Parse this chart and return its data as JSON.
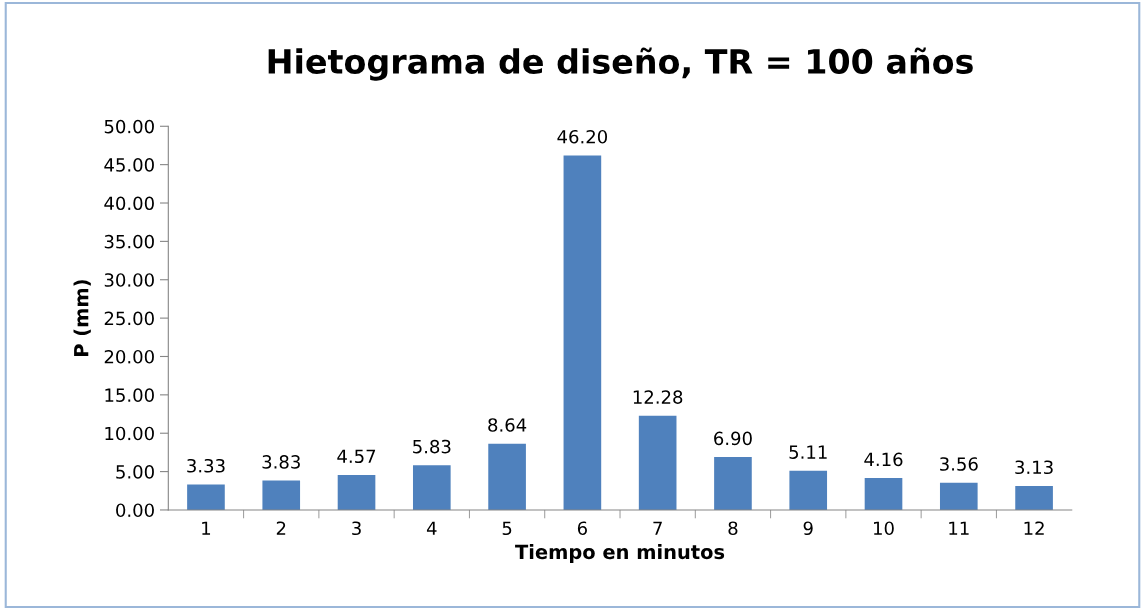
{
  "chart_data": {
    "type": "bar",
    "title": "Hietograma de diseño, TR = 100 años",
    "xlabel": "Tiempo en minutos",
    "ylabel": "P (mm)",
    "categories": [
      "1",
      "2",
      "3",
      "4",
      "5",
      "6",
      "7",
      "8",
      "9",
      "10",
      "11",
      "12"
    ],
    "values": [
      3.33,
      3.83,
      4.57,
      5.83,
      8.64,
      46.2,
      12.28,
      6.9,
      5.11,
      4.16,
      3.56,
      3.13
    ],
    "value_labels": [
      "3.33",
      "3.83",
      "4.57",
      "5.83",
      "8.64",
      "46.20",
      "12.28",
      "6.90",
      "5.11",
      "4.16",
      "3.56",
      "3.13"
    ],
    "color": "#4f81bd",
    "ylim": [
      0,
      50
    ],
    "yticks": [
      {
        "value": 0,
        "label": "0.00"
      },
      {
        "value": 5,
        "label": "5.00"
      },
      {
        "value": 10,
        "label": "10.00"
      },
      {
        "value": 15,
        "label": "15.00"
      },
      {
        "value": 20,
        "label": "20.00"
      },
      {
        "value": 25,
        "label": "25.00"
      },
      {
        "value": 30,
        "label": "30.00"
      },
      {
        "value": 35,
        "label": "35.00"
      },
      {
        "value": 40,
        "label": "40.00"
      },
      {
        "value": 45,
        "label": "45.00"
      },
      {
        "value": 50,
        "label": "50.00"
      }
    ],
    "grid": false,
    "legend": false
  }
}
